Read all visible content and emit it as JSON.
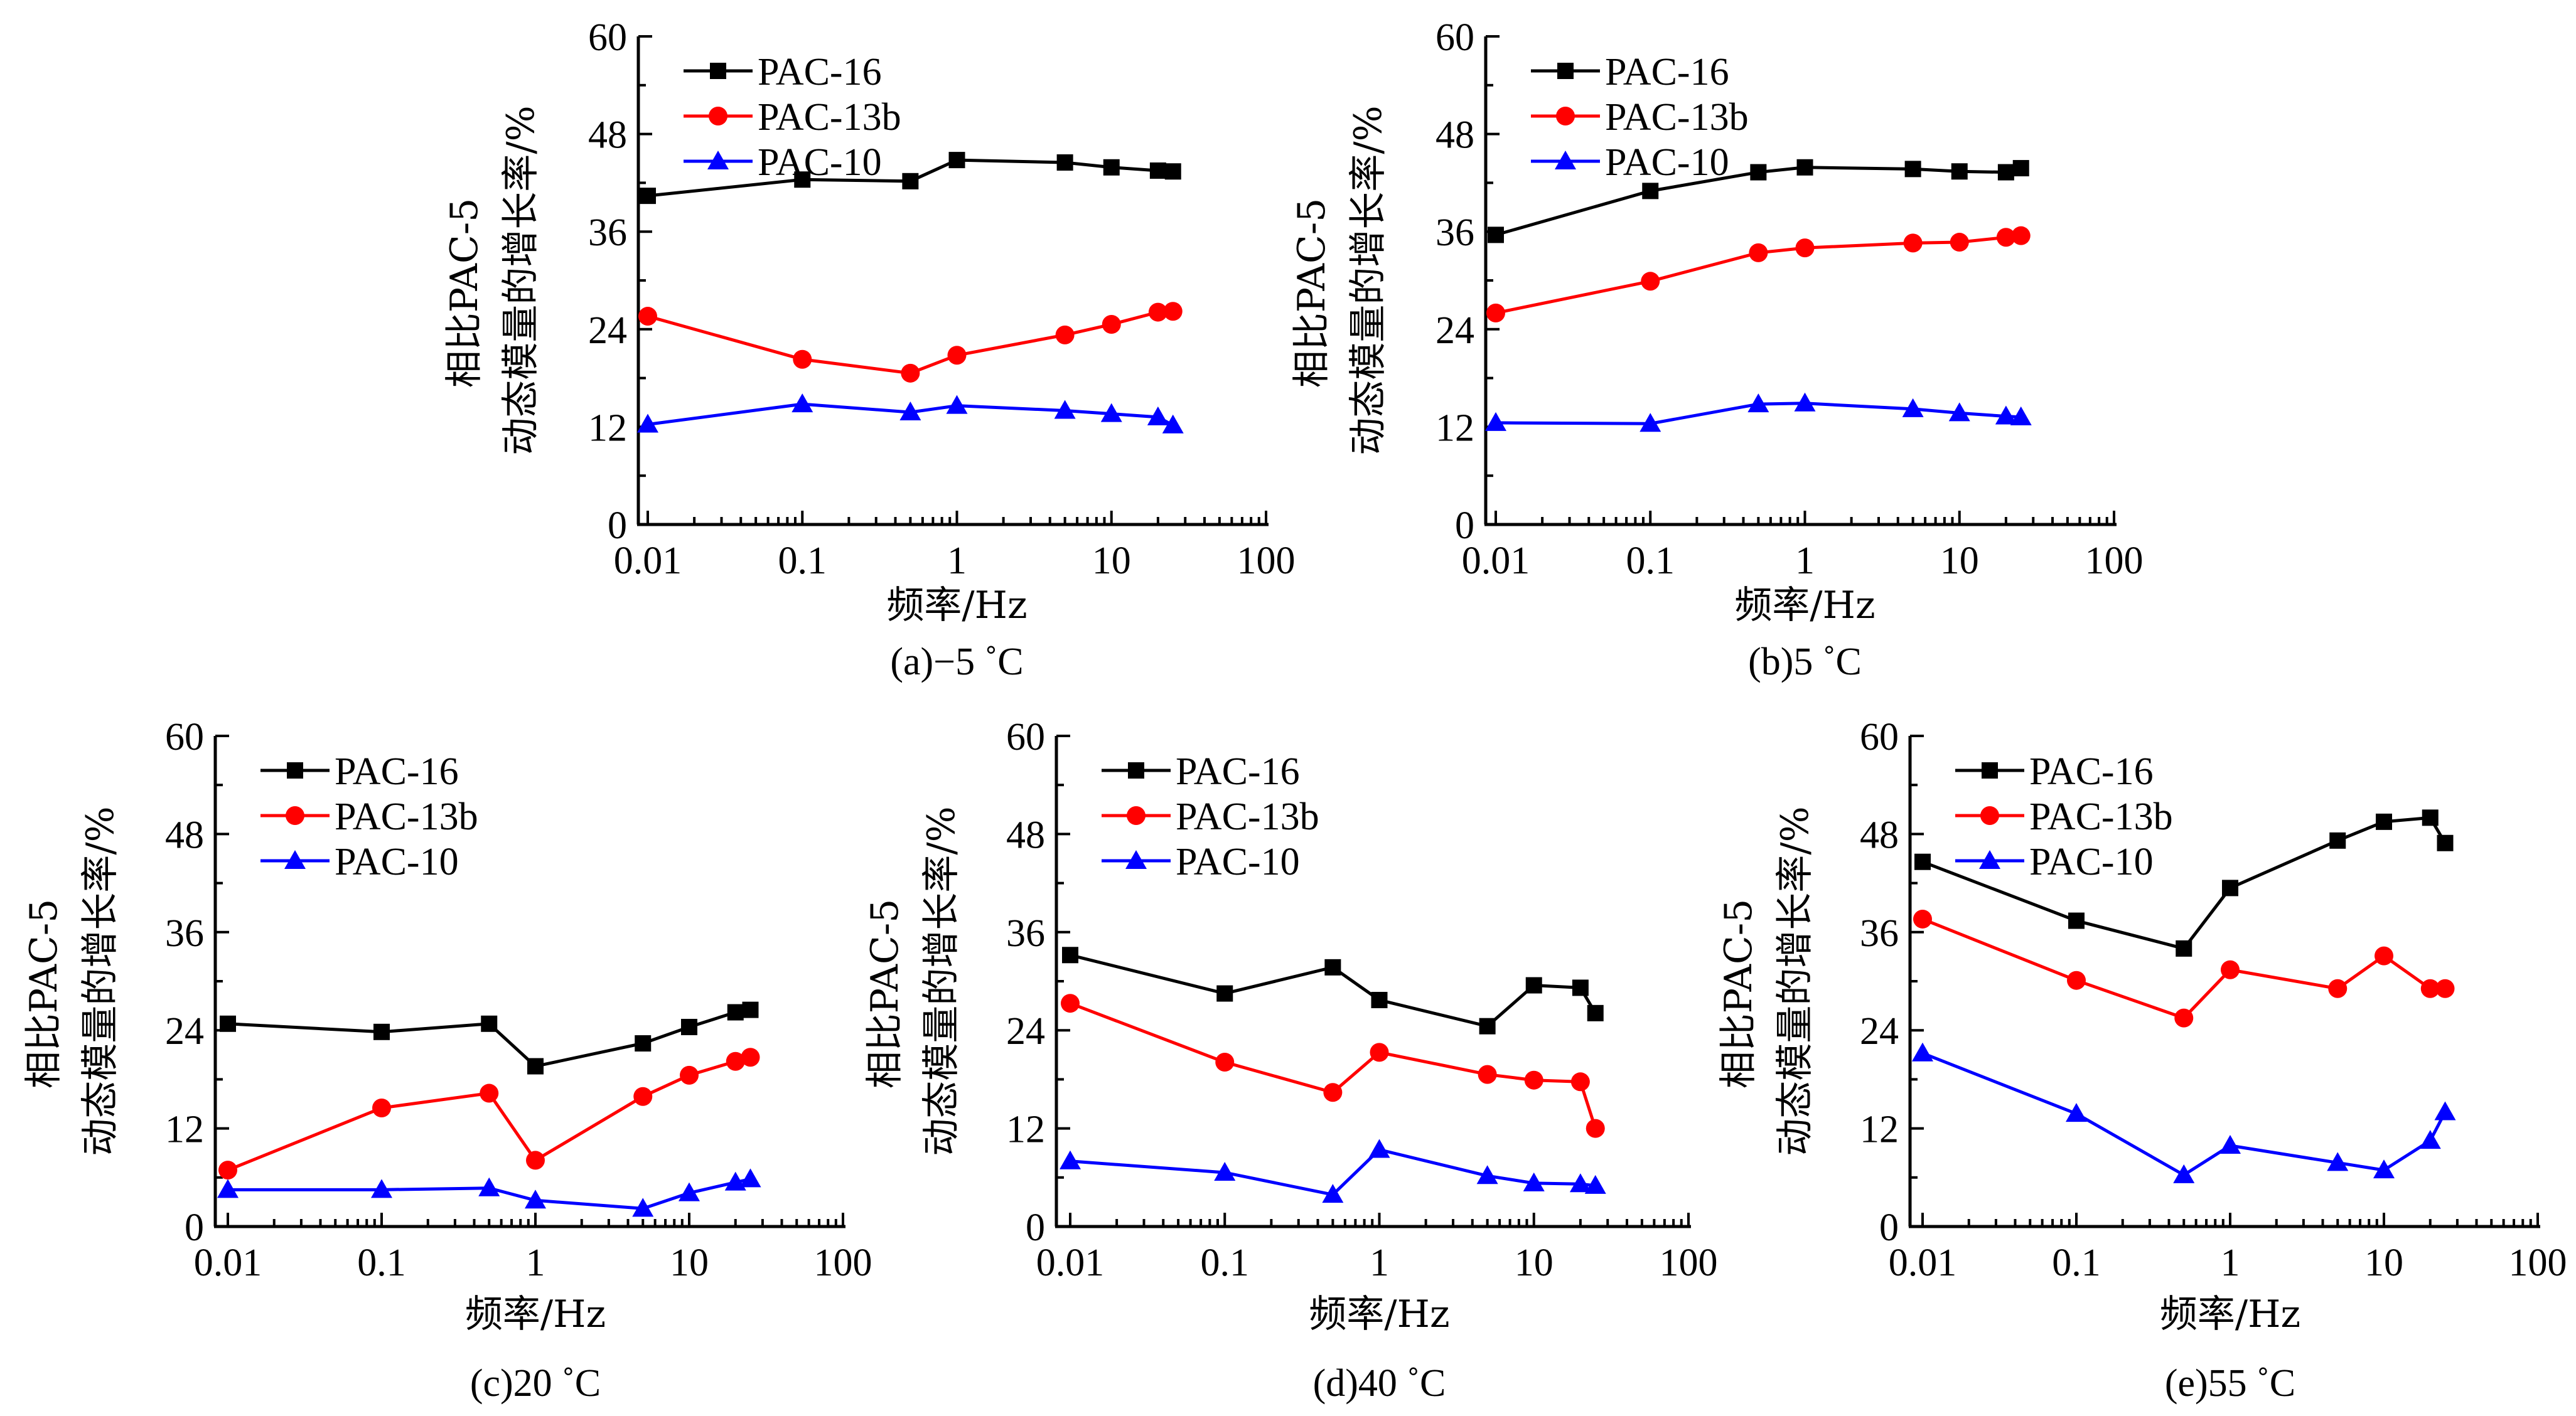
{
  "figure": {
    "ylabel_line1": "相比PAC-5",
    "ylabel_line2": "动态模量的增长率/%",
    "xlabel": "频率/Hz"
  },
  "chart_data": [
    {
      "type": "line",
      "caption": "(a)−5 ˚C",
      "xscale": "log",
      "xlabel": "频率/Hz",
      "ylabel": "相比PAC-5 动态模量的增长率/%",
      "xlim": [
        0.01,
        100
      ],
      "ylim": [
        0,
        60
      ],
      "xticks": [
        "0.01",
        "0.1",
        "1",
        "10",
        "100"
      ],
      "yticks": [
        "0",
        "12",
        "24",
        "36",
        "48",
        "60"
      ],
      "legend": "top-left",
      "x": [
        0.01,
        0.1,
        0.5,
        1,
        5,
        10,
        20,
        25
      ],
      "series": [
        {
          "name": "PAC-16",
          "color": "#000000",
          "marker": "square",
          "values": [
            40.4,
            42.4,
            42.2,
            44.8,
            44.5,
            43.9,
            43.5,
            43.4
          ]
        },
        {
          "name": "PAC-13b",
          "color": "#ff0000",
          "marker": "circle",
          "values": [
            25.6,
            20.3,
            18.6,
            20.8,
            23.3,
            24.6,
            26.1,
            26.2
          ]
        },
        {
          "name": "PAC-10",
          "color": "#0000ff",
          "marker": "triangle",
          "values": [
            12.3,
            14.8,
            13.8,
            14.6,
            14.0,
            13.6,
            13.2,
            12.2
          ]
        }
      ]
    },
    {
      "type": "line",
      "caption": "(b)5 ˚C",
      "xscale": "log",
      "xlabel": "频率/Hz",
      "ylabel": "相比PAC-5 动态模量的增长率/%",
      "xlim": [
        0.01,
        100
      ],
      "ylim": [
        0,
        60
      ],
      "xticks": [
        "0.01",
        "0.1",
        "1",
        "10",
        "100"
      ],
      "yticks": [
        "0",
        "12",
        "24",
        "36",
        "48",
        "60"
      ],
      "legend": "top-left",
      "x": [
        0.01,
        0.1,
        0.5,
        1,
        5,
        10,
        20,
        25
      ],
      "series": [
        {
          "name": "PAC-16",
          "color": "#000000",
          "marker": "square",
          "values": [
            35.6,
            41.0,
            43.3,
            43.9,
            43.7,
            43.4,
            43.3,
            43.8
          ]
        },
        {
          "name": "PAC-13b",
          "color": "#ff0000",
          "marker": "circle",
          "values": [
            26.0,
            29.9,
            33.4,
            34.0,
            34.6,
            34.7,
            35.3,
            35.5
          ]
        },
        {
          "name": "PAC-10",
          "color": "#0000ff",
          "marker": "triangle",
          "values": [
            12.5,
            12.4,
            14.8,
            14.9,
            14.2,
            13.7,
            13.3,
            13.2
          ]
        }
      ]
    },
    {
      "type": "line",
      "caption": "(c)20 ˚C",
      "xscale": "log",
      "xlabel": "频率/Hz",
      "ylabel": "相比PAC-5 动态模量的增长率/%",
      "xlim": [
        0.01,
        100
      ],
      "ylim": [
        0,
        60
      ],
      "xticks": [
        "0.01",
        "0.1",
        "1",
        "10",
        "100"
      ],
      "yticks": [
        "0",
        "12",
        "24",
        "36",
        "48",
        "60"
      ],
      "legend": "top-left",
      "x": [
        0.01,
        0.1,
        0.5,
        1,
        5,
        10,
        20,
        25
      ],
      "series": [
        {
          "name": "PAC-16",
          "color": "#000000",
          "marker": "square",
          "values": [
            24.8,
            23.8,
            24.8,
            19.6,
            22.4,
            24.4,
            26.2,
            26.5
          ]
        },
        {
          "name": "PAC-13b",
          "color": "#ff0000",
          "marker": "circle",
          "values": [
            6.9,
            14.5,
            16.3,
            8.1,
            15.9,
            18.5,
            20.2,
            20.7
          ]
        },
        {
          "name": "PAC-10",
          "color": "#0000ff",
          "marker": "triangle",
          "values": [
            4.5,
            4.5,
            4.7,
            3.2,
            2.2,
            4.1,
            5.4,
            5.8
          ]
        }
      ]
    },
    {
      "type": "line",
      "caption": "(d)40 ˚C",
      "xscale": "log",
      "xlabel": "频率/Hz",
      "ylabel": "相比PAC-5 动态模量的增长率/%",
      "xlim": [
        0.01,
        100
      ],
      "ylim": [
        0,
        60
      ],
      "xticks": [
        "0.01",
        "0.1",
        "1",
        "10",
        "100"
      ],
      "yticks": [
        "0",
        "12",
        "24",
        "36",
        "48",
        "60"
      ],
      "legend": "top-left",
      "x": [
        0.01,
        0.1,
        0.5,
        1,
        5,
        10,
        20,
        25
      ],
      "series": [
        {
          "name": "PAC-16",
          "color": "#000000",
          "marker": "square",
          "values": [
            33.2,
            28.5,
            31.7,
            27.7,
            24.5,
            29.5,
            29.2,
            26.1
          ]
        },
        {
          "name": "PAC-13b",
          "color": "#ff0000",
          "marker": "circle",
          "values": [
            27.3,
            20.1,
            16.4,
            21.3,
            18.6,
            17.9,
            17.7,
            12.0
          ]
        },
        {
          "name": "PAC-10",
          "color": "#0000ff",
          "marker": "triangle",
          "values": [
            8.0,
            6.6,
            3.9,
            9.4,
            6.2,
            5.3,
            5.2,
            5.0
          ]
        }
      ]
    },
    {
      "type": "line",
      "caption": "(e)55 ˚C",
      "xscale": "log",
      "xlabel": "频率/Hz",
      "ylabel": "相比PAC-5 动态模量的增长率/%",
      "xlim": [
        0.01,
        100
      ],
      "ylim": [
        0,
        60
      ],
      "xticks": [
        "0.01",
        "0.1",
        "1",
        "10",
        "100"
      ],
      "yticks": [
        "0",
        "12",
        "24",
        "36",
        "48",
        "60"
      ],
      "legend": "top-left",
      "x": [
        0.01,
        0.1,
        0.5,
        1,
        5,
        10,
        20,
        25
      ],
      "series": [
        {
          "name": "PAC-16",
          "color": "#000000",
          "marker": "square",
          "values": [
            44.6,
            37.4,
            34.0,
            41.4,
            47.2,
            49.5,
            50.0,
            46.9
          ]
        },
        {
          "name": "PAC-13b",
          "color": "#ff0000",
          "marker": "circle",
          "values": [
            37.6,
            30.1,
            25.5,
            31.4,
            29.1,
            33.1,
            29.1,
            29.1
          ]
        },
        {
          "name": "PAC-10",
          "color": "#0000ff",
          "marker": "triangle",
          "values": [
            21.2,
            13.8,
            6.3,
            9.9,
            7.8,
            6.9,
            10.5,
            14.0
          ]
        }
      ]
    }
  ]
}
